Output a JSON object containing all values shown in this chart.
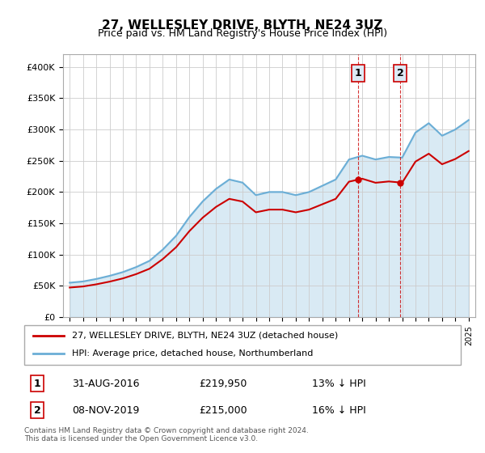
{
  "title": "27, WELLESLEY DRIVE, BLYTH, NE24 3UZ",
  "subtitle": "Price paid vs. HM Land Registry's House Price Index (HPI)",
  "yticks": [
    0,
    50000,
    100000,
    150000,
    200000,
    250000,
    300000,
    350000,
    400000
  ],
  "ytick_labels": [
    "£0",
    "£50K",
    "£100K",
    "£150K",
    "£200K",
    "£250K",
    "£300K",
    "£350K",
    "£400K"
  ],
  "hpi_color": "#6baed6",
  "price_color": "#cc0000",
  "annotation_bg": "#dce9f5",
  "annotation_border": "#cc0000",
  "legend_label_red": "27, WELLESLEY DRIVE, BLYTH, NE24 3UZ (detached house)",
  "legend_label_blue": "HPI: Average price, detached house, Northumberland",
  "transaction1_date": "31-AUG-2016",
  "transaction1_price": "£219,950",
  "transaction1_note": "13% ↓ HPI",
  "transaction2_date": "08-NOV-2019",
  "transaction2_price": "£215,000",
  "transaction2_note": "16% ↓ HPI",
  "footer": "Contains HM Land Registry data © Crown copyright and database right 2024.\nThis data is licensed under the Open Government Licence v3.0.",
  "background_color": "#ffffff",
  "grid_color": "#cccccc",
  "hpi_years": [
    1995,
    1996,
    1997,
    1998,
    1999,
    2000,
    2001,
    2002,
    2003,
    2004,
    2005,
    2006,
    2007,
    2008,
    2009,
    2010,
    2011,
    2012,
    2013,
    2014,
    2015,
    2016,
    2017,
    2018,
    2019,
    2020,
    2021,
    2022,
    2023,
    2024,
    2025
  ],
  "hpi_values": [
    55000,
    57000,
    61000,
    66000,
    72000,
    80000,
    90000,
    108000,
    130000,
    160000,
    185000,
    205000,
    220000,
    215000,
    195000,
    200000,
    200000,
    195000,
    200000,
    210000,
    220000,
    252000,
    258000,
    252000,
    256000,
    255000,
    295000,
    310000,
    290000,
    300000,
    315000
  ],
  "sale_years": [
    2016.67,
    2019.85
  ],
  "sale_prices": [
    219950,
    215000
  ],
  "xlim_start": 1994.5,
  "xlim_end": 2025.5,
  "ylim_min": 0,
  "ylim_max": 420000
}
